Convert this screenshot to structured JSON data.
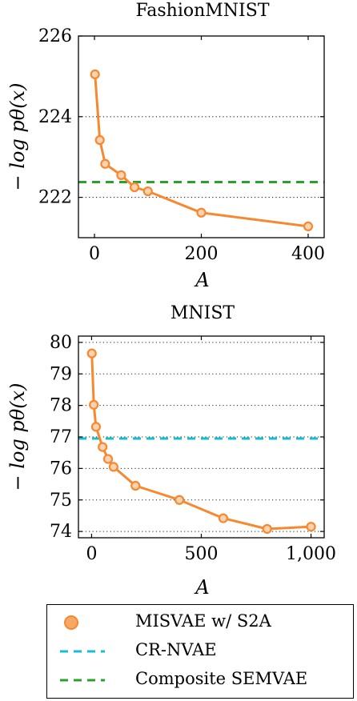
{
  "chart_data": [
    {
      "type": "line",
      "title": "FashionMNIST",
      "xlabel": "A",
      "ylabel": "− log pθ(x)",
      "xlim": [
        -30,
        430
      ],
      "ylim": [
        221.0,
        226.0
      ],
      "xticks": [
        0,
        200,
        400
      ],
      "xtick_labels": [
        "0",
        "200",
        "400"
      ],
      "yticks": [
        222,
        224,
        226
      ],
      "ytick_labels": [
        "222",
        "224",
        "226"
      ],
      "grid": "horizontal dotted",
      "series": [
        {
          "name": "MISVAE w/ S2A",
          "color": "#f7882f",
          "x": [
            1,
            10,
            20,
            50,
            75,
            100,
            200,
            400
          ],
          "y": [
            225.05,
            223.42,
            222.83,
            222.55,
            222.25,
            222.15,
            221.62,
            221.28
          ]
        }
      ],
      "hlines": [
        {
          "name": "Composite SEMVAE",
          "y": 222.38,
          "color": "#2ca02c"
        }
      ]
    },
    {
      "type": "line",
      "title": "MNIST",
      "xlabel": "A",
      "ylabel": "− log pθ(x)",
      "xlim": [
        -60,
        1060
      ],
      "ylim": [
        73.8,
        80.2
      ],
      "xticks": [
        0,
        500,
        1000
      ],
      "xtick_labels": [
        "0",
        "500",
        "1,000"
      ],
      "yticks": [
        74,
        75,
        76,
        77,
        78,
        79,
        80
      ],
      "ytick_labels": [
        "74",
        "75",
        "76",
        "77",
        "78",
        "79",
        "80"
      ],
      "grid": "horizontal dotted",
      "series": [
        {
          "name": "MISVAE w/ S2A",
          "color": "#f7882f",
          "x": [
            1,
            10,
            20,
            50,
            75,
            100,
            200,
            400,
            600,
            800,
            1000
          ],
          "y": [
            79.65,
            78.02,
            77.32,
            76.68,
            76.3,
            76.05,
            75.45,
            75.0,
            74.42,
            74.08,
            74.15
          ]
        }
      ],
      "hlines": [
        {
          "name": "CR-NVAE",
          "y": 76.95,
          "color": "#17becf"
        }
      ]
    }
  ],
  "legend": {
    "entries": [
      {
        "label": "MISVAE w/ S2A",
        "marker": "circle",
        "color": "#f7882f"
      },
      {
        "label": "CR-NVAE",
        "marker": "dashed-line",
        "color": "#17becf"
      },
      {
        "label": "Composite SEMVAE",
        "marker": "dashed-line",
        "color": "#2ca02c"
      }
    ]
  }
}
